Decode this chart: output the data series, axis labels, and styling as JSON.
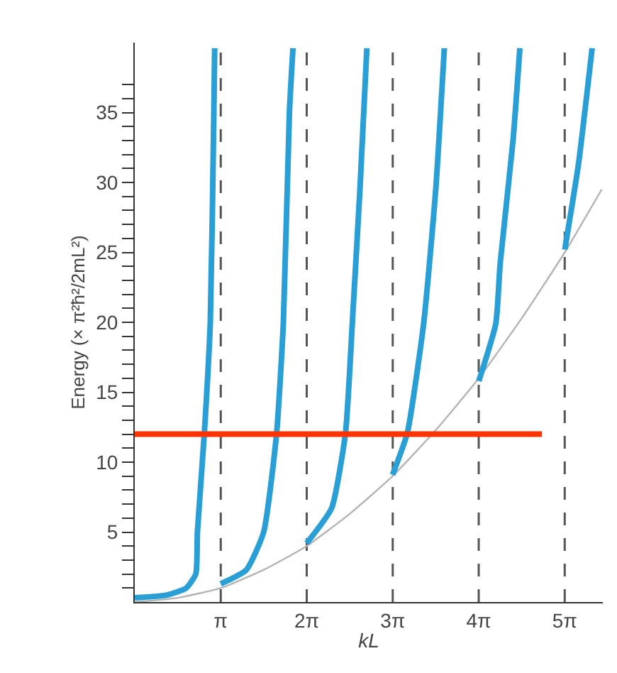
{
  "chart_data": {
    "type": "line",
    "xlabel": "kL",
    "ylabel": "Energy (× π²ħ²/2mL²)",
    "xlim": [
      0,
      17.1
    ],
    "ylim": [
      0,
      40
    ],
    "xticks": [
      {
        "value": 3.1416,
        "label": "π"
      },
      {
        "value": 6.2832,
        "label": "2π"
      },
      {
        "value": 9.4248,
        "label": "3π"
      },
      {
        "value": 12.5664,
        "label": "4π"
      },
      {
        "value": 15.708,
        "label": "5π"
      }
    ],
    "yticks": [
      {
        "value": 1,
        "label": null
      },
      {
        "value": 2,
        "label": null
      },
      {
        "value": 3,
        "label": null
      },
      {
        "value": 4,
        "label": null
      },
      5,
      {
        "value": 6,
        "label": null
      },
      {
        "value": 7,
        "label": null
      },
      {
        "value": 8,
        "label": null
      },
      {
        "value": 9,
        "label": null
      },
      10,
      {
        "value": 11,
        "label": null
      },
      {
        "value": 12,
        "label": null
      },
      {
        "value": 13,
        "label": null
      },
      {
        "value": 14,
        "label": null
      },
      15,
      {
        "value": 16,
        "label": null
      },
      {
        "value": 17,
        "label": null
      },
      {
        "value": 18,
        "label": null
      },
      {
        "value": 19,
        "label": null
      },
      20,
      {
        "value": 21,
        "label": null
      },
      {
        "value": 22,
        "label": null
      },
      {
        "value": 23,
        "label": null
      },
      {
        "value": 24,
        "label": null
      },
      25,
      {
        "value": 26,
        "label": null
      },
      {
        "value": 27,
        "label": null
      },
      {
        "value": 28,
        "label": null
      },
      {
        "value": 29,
        "label": null
      },
      30,
      {
        "value": 31,
        "label": null
      },
      {
        "value": 32,
        "label": null
      },
      {
        "value": 33,
        "label": null
      },
      {
        "value": 34,
        "label": null
      },
      35,
      {
        "value": 36,
        "label": null
      },
      {
        "value": 37,
        "label": null
      }
    ],
    "grid": false,
    "marker": "none",
    "series": [
      {
        "color": "#b4b4b4",
        "x": [
          0,
          1.57,
          3.14,
          4.71,
          6.28,
          7.85,
          9.42,
          11.0,
          12.57,
          14.14,
          15.71,
          17.06
        ],
        "values": [
          0,
          0.3,
          1,
          2.3,
          4,
          6.3,
          9,
          12.3,
          16,
          20.3,
          25,
          29.5
        ]
      },
      {
        "color": "#2a9fd6",
        "x": [
          0,
          1.19,
          1.88,
          2.23,
          2.29,
          2.54,
          2.76,
          2.89,
          2.92
        ],
        "values": [
          0.3,
          0.5,
          1,
          2,
          5,
          12,
          20,
          35,
          39.6
        ]
      },
      {
        "color": "#2a9fd6",
        "x": [
          3.14,
          4.08,
          4.71,
          5.18,
          5.43,
          5.65,
          5.78
        ],
        "values": [
          1.3,
          2.3,
          5,
          12,
          20,
          35,
          39.6
        ]
      },
      {
        "color": "#2a9fd6",
        "x": [
          6.28,
          7.19,
          7.7,
          7.95,
          8.23,
          8.48
        ],
        "values": [
          4.2,
          6.7,
          12.1,
          20,
          29.6,
          39.6
        ]
      },
      {
        "color": "#2a9fd6",
        "x": [
          9.42,
          9.96,
          10.56,
          11.0,
          11.31
        ],
        "values": [
          9.1,
          12.1,
          20,
          29.6,
          39.6
        ]
      },
      {
        "color": "#2a9fd6",
        "x": [
          12.57,
          13.19,
          13.35,
          13.82,
          14.07
        ],
        "values": [
          15.8,
          19.9,
          24.2,
          33,
          39.6
        ]
      },
      {
        "color": "#2a9fd6",
        "x": [
          15.71,
          16.21,
          16.71
        ],
        "values": [
          25.2,
          31.3,
          39.6
        ]
      }
    ],
    "ref_lines": [
      {
        "axis": "x",
        "value": 3.1416,
        "color": "#555555",
        "line_style": "dashed"
      },
      {
        "axis": "x",
        "value": 6.2832,
        "color": "#555555",
        "line_style": "dashed"
      },
      {
        "axis": "x",
        "value": 9.4248,
        "color": "#555555",
        "line_style": "dashed"
      },
      {
        "axis": "x",
        "value": 12.5664,
        "color": "#555555",
        "line_style": "dashed"
      },
      {
        "axis": "x",
        "value": 15.708,
        "color": "#555555",
        "line_style": "dashed"
      },
      {
        "axis": "y",
        "value": 12,
        "color": "#ff3300",
        "line_style": "solid"
      }
    ]
  }
}
